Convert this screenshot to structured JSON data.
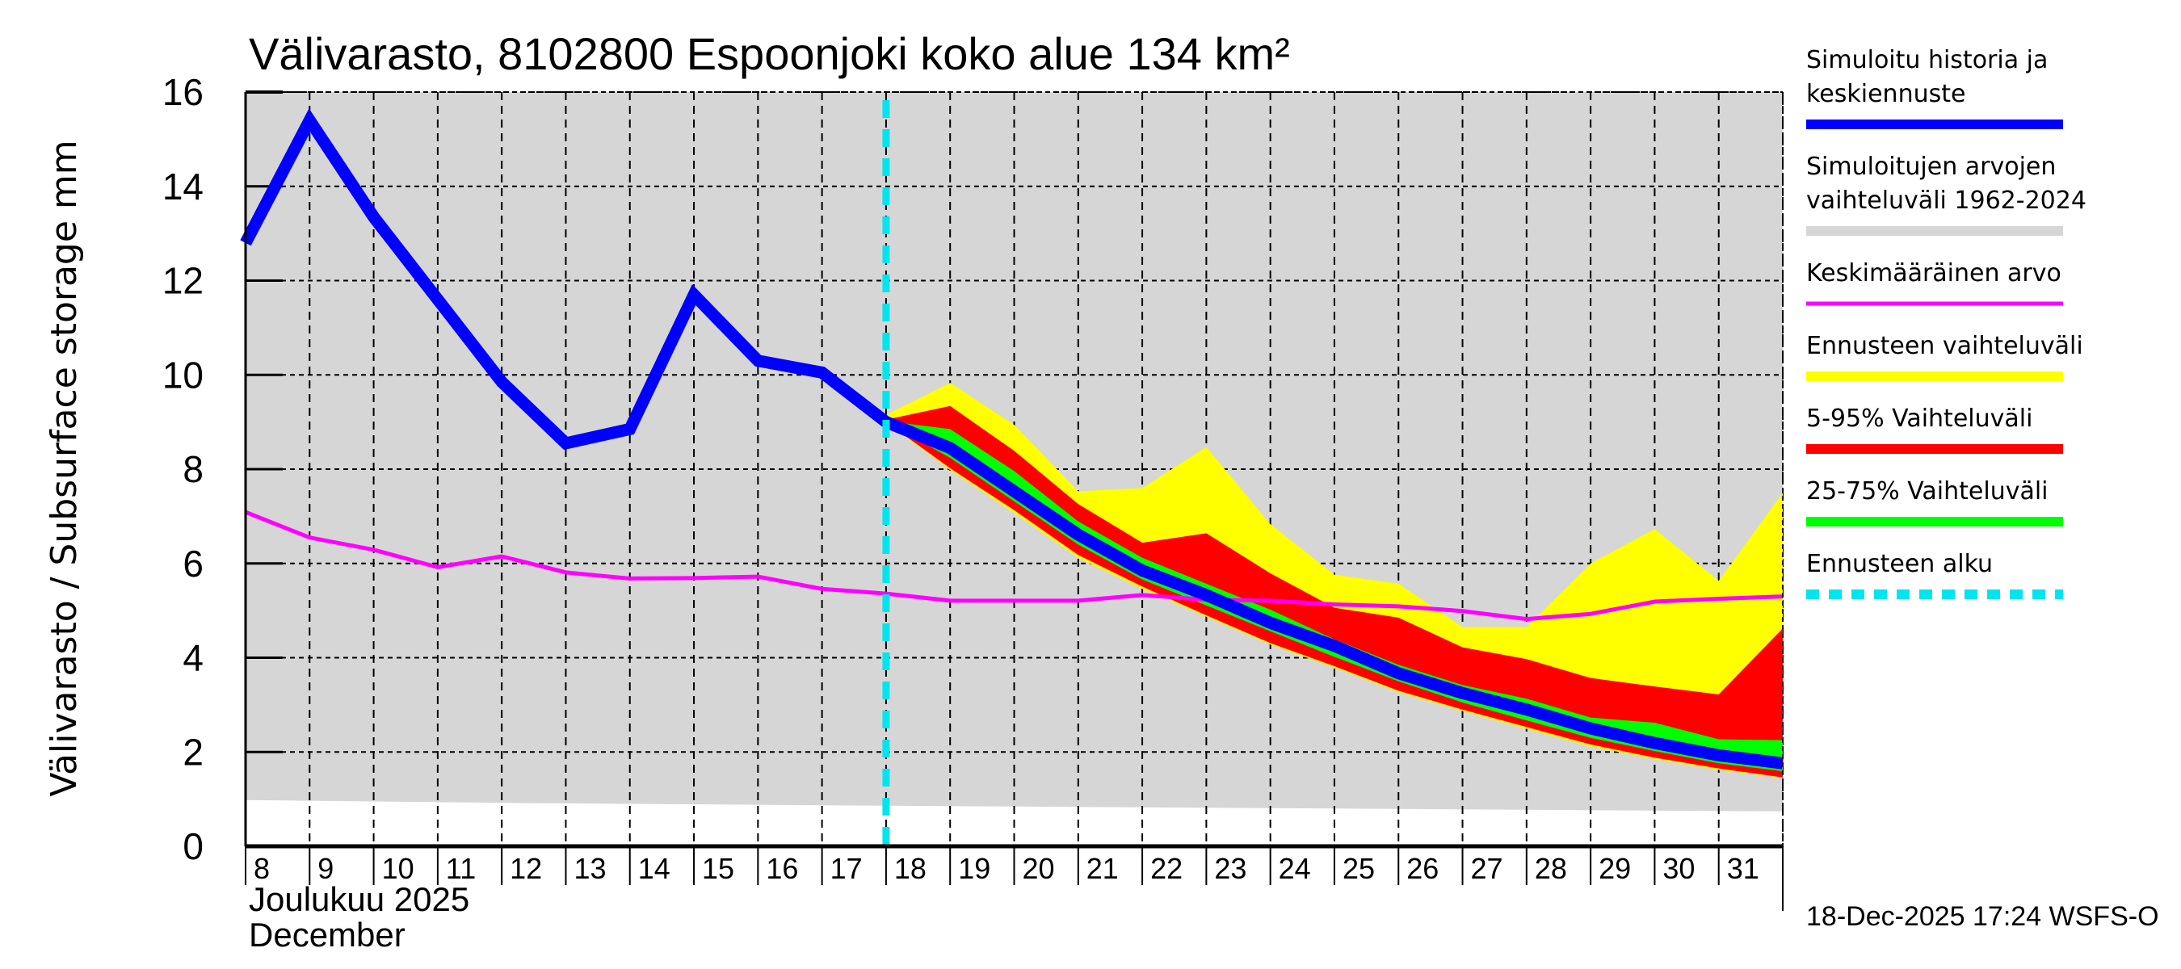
{
  "chart_data": {
    "type": "area",
    "title": "Välivarasto, 8102800 Espoonjoki koko alue 134 km²",
    "ylabel": "Välivarasto / Subsurface storage  mm",
    "xlabel_line1": "Joulukuu  2025",
    "xlabel_line2": "December",
    "timestamp": "18-Dec-2025 17:24 WSFS-O",
    "ylim": [
      0,
      16
    ],
    "xlim": [
      8,
      32
    ],
    "grid": true,
    "yticks": [
      0,
      2,
      4,
      6,
      8,
      10,
      12,
      14,
      16
    ],
    "xticks": [
      8,
      9,
      10,
      11,
      12,
      13,
      14,
      15,
      16,
      17,
      18,
      19,
      20,
      21,
      22,
      23,
      24,
      25,
      26,
      27,
      28,
      29,
      30,
      31
    ],
    "forecast_start": 18,
    "legend_placement": "right",
    "colors": {
      "history": "#0000ff",
      "sim_range": "#d6d6d6",
      "mean": "#ff00ff",
      "forecast_range": "#ffff00",
      "p5_95": "#ff0000",
      "p25_75": "#00ff00",
      "forecast_start": "#00e5ee"
    },
    "legend": [
      {
        "key": "history",
        "label": [
          "Simuloitu historia ja",
          "keskiennuste"
        ],
        "style": "solid"
      },
      {
        "key": "sim_range",
        "label": [
          "Simuloitujen arvojen",
          "vaihteluväli 1962-2024"
        ],
        "style": "solid"
      },
      {
        "key": "mean",
        "label": [
          "Keskimääräinen arvo"
        ],
        "style": "thin"
      },
      {
        "key": "forecast_range",
        "label": [
          "Ennusteen vaihteluväli"
        ],
        "style": "solid"
      },
      {
        "key": "p5_95",
        "label": [
          "5-95% Vaihteluväli"
        ],
        "style": "solid"
      },
      {
        "key": "p25_75",
        "label": [
          "25-75% Vaihteluväli"
        ],
        "style": "solid"
      },
      {
        "key": "forecast_start",
        "label": [
          "Ennusteen alku"
        ],
        "style": "dashed"
      }
    ],
    "sim_range": {
      "x": [
        8,
        12,
        18,
        25,
        32
      ],
      "lower": [
        0.98,
        0.92,
        0.86,
        0.8,
        0.74
      ],
      "upper": [
        16,
        16,
        16,
        16,
        16
      ]
    },
    "history": {
      "x": [
        8,
        9,
        10,
        11,
        12,
        13,
        14,
        15,
        16,
        17,
        18
      ],
      "values": [
        12.8,
        15.4,
        13.35,
        11.6,
        9.85,
        8.55,
        8.85,
        11.7,
        10.3,
        10.05,
        9.0
      ]
    },
    "mean": {
      "x": [
        8,
        9,
        10,
        11,
        12,
        13,
        14,
        15,
        16,
        17,
        18,
        19,
        20,
        21,
        22,
        23,
        24,
        25,
        26,
        27,
        28,
        29,
        30,
        31,
        32
      ],
      "values": [
        7.09,
        6.55,
        6.29,
        5.92,
        6.15,
        5.81,
        5.68,
        5.69,
        5.72,
        5.46,
        5.36,
        5.21,
        5.21,
        5.21,
        5.33,
        5.23,
        5.21,
        5.13,
        5.09,
        4.99,
        4.82,
        4.93,
        5.19,
        5.25,
        5.3
      ]
    },
    "forecast": {
      "x": [
        18,
        19,
        20,
        21,
        22,
        23,
        24,
        25,
        26,
        27,
        28,
        29,
        30,
        31,
        32
      ],
      "median": [
        9.0,
        8.45,
        7.53,
        6.61,
        5.85,
        5.33,
        4.74,
        4.25,
        3.67,
        3.25,
        2.9,
        2.5,
        2.19,
        1.93,
        1.76
      ],
      "min": [
        9.0,
        7.98,
        7.07,
        6.12,
        5.46,
        4.87,
        4.28,
        3.79,
        3.27,
        2.87,
        2.49,
        2.12,
        1.85,
        1.62,
        1.45
      ],
      "max": [
        9.15,
        9.83,
        8.94,
        7.53,
        7.6,
        8.47,
        6.83,
        5.76,
        5.57,
        4.65,
        4.65,
        6.0,
        6.73,
        5.63,
        7.5
      ],
      "p5": [
        9.0,
        8.02,
        7.13,
        6.18,
        5.51,
        4.9,
        4.31,
        3.82,
        3.3,
        2.9,
        2.53,
        2.16,
        1.88,
        1.65,
        1.46
      ],
      "p95": [
        9.05,
        9.34,
        8.39,
        7.26,
        6.44,
        6.64,
        5.79,
        5.06,
        4.85,
        4.22,
        3.97,
        3.57,
        3.39,
        3.22,
        4.62
      ],
      "p25": [
        9.0,
        8.24,
        7.32,
        6.4,
        5.66,
        5.11,
        4.56,
        4.02,
        3.5,
        3.05,
        2.67,
        2.3,
        2.02,
        1.76,
        1.59
      ],
      "p75": [
        9.02,
        8.85,
        7.96,
        6.89,
        6.12,
        5.57,
        5.02,
        4.39,
        3.85,
        3.42,
        3.13,
        2.73,
        2.62,
        2.27,
        2.25
      ]
    }
  }
}
